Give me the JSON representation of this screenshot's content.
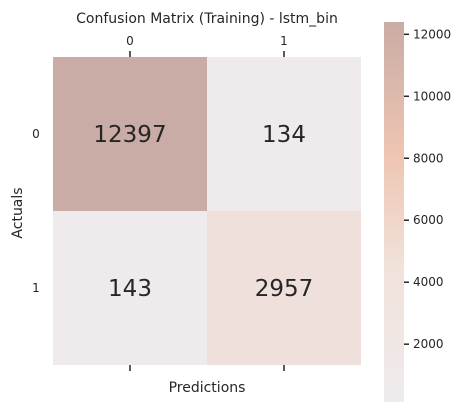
{
  "chart_data": {
    "type": "heatmap",
    "title": "Confusion Matrix (Training) - lstm_bin",
    "xlabel": "Predictions",
    "ylabel": "Actuals",
    "x_categories": [
      "0",
      "1"
    ],
    "y_categories": [
      "0",
      "1"
    ],
    "values": [
      [
        12397,
        134
      ],
      [
        143,
        2957
      ]
    ],
    "value_labels": [
      [
        "12397",
        "134"
      ],
      [
        "143",
        "2957"
      ]
    ],
    "x_ticks_position": "top",
    "grid": false,
    "colorbar": {
      "position": "right",
      "range": [
        134,
        12397
      ],
      "ticks": [
        2000,
        4000,
        6000,
        8000,
        10000,
        12000
      ],
      "tick_labels": [
        "2000",
        "4000",
        "6000",
        "8000",
        "10000",
        "12000"
      ]
    },
    "colors": {
      "low": "#efebed",
      "mid": "#f0cfbd",
      "high": "#c9aca5",
      "text": "#262626"
    }
  }
}
